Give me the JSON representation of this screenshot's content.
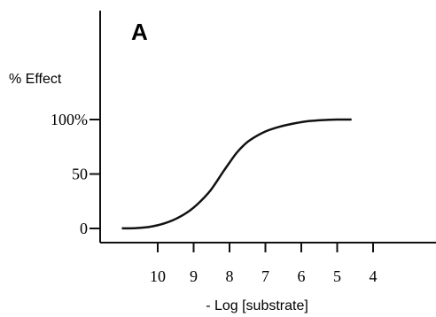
{
  "chart_data": {
    "type": "line",
    "panel_label": "A",
    "title": "",
    "xlabel": "- Log [substrate]",
    "ylabel": "% Effect",
    "x_reversed": true,
    "xlim": [
      11.4,
      3.4
    ],
    "ylim": [
      -5,
      102
    ],
    "x_ticks": [
      10,
      9,
      8,
      7,
      6,
      5,
      4
    ],
    "y_ticks": [
      {
        "value": 0,
        "label": "0"
      },
      {
        "value": 50,
        "label": "50"
      },
      {
        "value": 100,
        "label": "100%"
      }
    ],
    "grid": false,
    "legend": "none",
    "line_color": "#111111",
    "series": [
      {
        "x": [
          11.0,
          10.6,
          10.2,
          9.8,
          9.4,
          9.0,
          8.6,
          8.4,
          8.2,
          8.0,
          7.8,
          7.6,
          7.4,
          7.0,
          6.6,
          6.2,
          5.8,
          5.4,
          5.0,
          4.6
        ],
        "y": [
          0.1,
          0.3,
          1.6,
          4.8,
          10.4,
          19.2,
          32.2,
          41.0,
          51.0,
          60.5,
          69.5,
          76.5,
          81.8,
          89.0,
          93.4,
          96.4,
          98.5,
          99.5,
          100.0,
          100.0
        ]
      }
    ]
  }
}
